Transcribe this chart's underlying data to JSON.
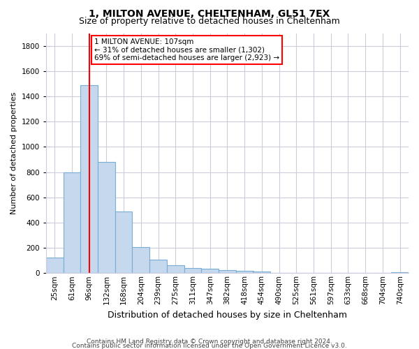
{
  "title1": "1, MILTON AVENUE, CHELTENHAM, GL51 7EX",
  "title2": "Size of property relative to detached houses in Cheltenham",
  "xlabel": "Distribution of detached houses by size in Cheltenham",
  "ylabel": "Number of detached properties",
  "footer1": "Contains HM Land Registry data © Crown copyright and database right 2024.",
  "footer2": "Contains public sector information licensed under the Open Government Licence v3.0.",
  "categories": [
    "25sqm",
    "61sqm",
    "96sqm",
    "132sqm",
    "168sqm",
    "204sqm",
    "239sqm",
    "275sqm",
    "311sqm",
    "347sqm",
    "382sqm",
    "418sqm",
    "454sqm",
    "490sqm",
    "525sqm",
    "561sqm",
    "597sqm",
    "633sqm",
    "668sqm",
    "704sqm",
    "740sqm"
  ],
  "values": [
    125,
    800,
    1490,
    880,
    490,
    205,
    105,
    65,
    40,
    35,
    25,
    20,
    10,
    0,
    0,
    0,
    0,
    0,
    0,
    0,
    8
  ],
  "bar_color": "#c5d8ee",
  "bar_edge_color": "#7aadd4",
  "vline_x_idx": 2,
  "vline_color": "red",
  "annotation_text": "1 MILTON AVENUE: 107sqm\n← 31% of detached houses are smaller (1,302)\n69% of semi-detached houses are larger (2,923) →",
  "annotation_box_color": "white",
  "annotation_box_edge": "red",
  "ylim": [
    0,
    1900
  ],
  "yticks": [
    0,
    200,
    400,
    600,
    800,
    1000,
    1200,
    1400,
    1600,
    1800
  ],
  "background_color": "#ffffff",
  "grid_color": "#ccccdd",
  "title1_fontsize": 10,
  "title2_fontsize": 9,
  "xlabel_fontsize": 9,
  "ylabel_fontsize": 8,
  "tick_fontsize": 7.5,
  "footer_fontsize": 6.5
}
